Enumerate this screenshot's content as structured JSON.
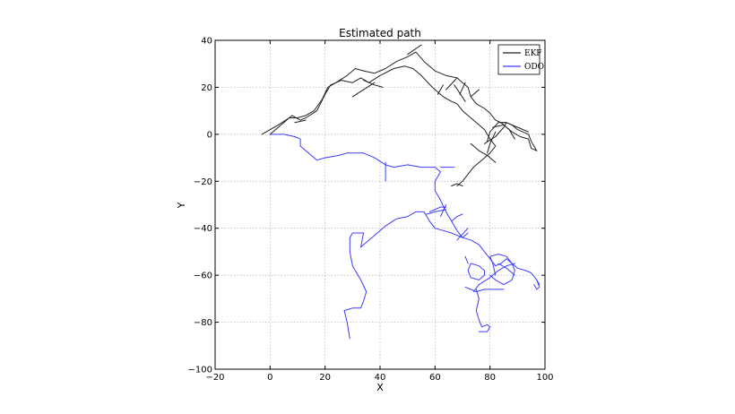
{
  "chart_data": {
    "type": "line",
    "title": "Estimated path",
    "xlabel": "X",
    "ylabel": "Y",
    "xlim": [
      -20,
      100
    ],
    "ylim": [
      -100,
      40
    ],
    "xticks": [
      -20,
      0,
      20,
      40,
      60,
      80,
      100
    ],
    "yticks": [
      -100,
      -80,
      -60,
      -40,
      -20,
      0,
      20,
      40
    ],
    "grid": true,
    "legend_position": "top-right",
    "series": [
      {
        "name": "EKF",
        "color": "#222222",
        "segments": [
          [
            [
              -3,
              0
            ],
            [
              3,
              4
            ],
            [
              7,
              7
            ],
            [
              10,
              7
            ],
            [
              13,
              8
            ],
            [
              16,
              10
            ],
            [
              19,
              15
            ],
            [
              21,
              20
            ],
            [
              24,
              22
            ],
            [
              28,
              25
            ],
            [
              31,
              28
            ],
            [
              34,
              27
            ],
            [
              38,
              26
            ],
            [
              42,
              28
            ],
            [
              46,
              31
            ],
            [
              50,
              33
            ],
            [
              53,
              35
            ],
            [
              56,
              31
            ],
            [
              60,
              27
            ],
            [
              64,
              25
            ],
            [
              68,
              24
            ],
            [
              70,
              22
            ],
            [
              72,
              20
            ],
            [
              73,
              16
            ],
            [
              75,
              13
            ],
            [
              78,
              11
            ],
            [
              80,
              9
            ],
            [
              82,
              6
            ],
            [
              84,
              5
            ],
            [
              86,
              5
            ],
            [
              88,
              4
            ],
            [
              90,
              2
            ],
            [
              92,
              1
            ],
            [
              94,
              0
            ],
            [
              95,
              -3
            ],
            [
              96,
              -5
            ],
            [
              97,
              -7
            ]
          ],
          [
            [
              0,
              0
            ],
            [
              4,
              4
            ],
            [
              8,
              8
            ],
            [
              11,
              6
            ],
            [
              13,
              7
            ],
            [
              17,
              10
            ],
            [
              20,
              17
            ],
            [
              22,
              21
            ],
            [
              26,
              23
            ],
            [
              30,
              22
            ],
            [
              33,
              24
            ],
            [
              36,
              22
            ],
            [
              40,
              25
            ],
            [
              45,
              28
            ],
            [
              49,
              29
            ],
            [
              52,
              28
            ],
            [
              55,
              25
            ],
            [
              59,
              20
            ],
            [
              63,
              16
            ],
            [
              66,
              14
            ],
            [
              68,
              13
            ],
            [
              70,
              10
            ],
            [
              72,
              8
            ],
            [
              75,
              5
            ],
            [
              78,
              2
            ],
            [
              80,
              -2
            ],
            [
              82,
              -5
            ],
            [
              80,
              -8
            ],
            [
              77,
              -11
            ],
            [
              74,
              -14
            ],
            [
              72,
              -17
            ],
            [
              70,
              -20
            ],
            [
              68,
              -22
            ]
          ],
          [
            [
              9,
              5
            ],
            [
              13,
              6
            ]
          ],
          [
            [
              30,
              16
            ],
            [
              34,
              19
            ],
            [
              38,
              22
            ]
          ],
          [
            [
              34,
              23
            ],
            [
              38,
              21
            ],
            [
              41,
              20
            ]
          ],
          [
            [
              50,
              34
            ],
            [
              55,
              38
            ]
          ],
          [
            [
              61,
              17
            ],
            [
              63,
              21
            ]
          ],
          [
            [
              64,
              19
            ],
            [
              68,
              24
            ]
          ],
          [
            [
              69,
              17
            ],
            [
              71,
              22
            ]
          ],
          [
            [
              67,
              21
            ],
            [
              71,
              14
            ]
          ],
          [
            [
              73,
              16
            ],
            [
              76,
              19
            ]
          ],
          [
            [
              81,
              3
            ],
            [
              85,
              4
            ],
            [
              88,
              1
            ],
            [
              91,
              -1
            ],
            [
              94,
              -2
            ],
            [
              95,
              -6
            ],
            [
              97,
              -7
            ]
          ],
          [
            [
              78,
              -4
            ],
            [
              82,
              -1
            ],
            [
              85,
              3
            ],
            [
              86,
              5
            ],
            [
              83,
              5
            ],
            [
              80,
              1
            ],
            [
              79,
              -3
            ]
          ],
          [
            [
              84,
              5
            ],
            [
              87,
              2
            ],
            [
              89,
              -2
            ]
          ],
          [
            [
              73,
              -4
            ],
            [
              76,
              -7
            ],
            [
              79,
              -9
            ],
            [
              82,
              -12
            ]
          ],
          [
            [
              79,
              -8
            ],
            [
              80,
              -4
            ],
            [
              82,
              1
            ]
          ],
          [
            [
              86,
              5
            ],
            [
              90,
              3
            ],
            [
              94,
              1
            ]
          ],
          [
            [
              66,
              -22
            ],
            [
              68,
              -21
            ],
            [
              70,
              -22
            ]
          ]
        ]
      },
      {
        "name": "ODO",
        "color": "#3b3bff",
        "segments": [
          [
            [
              0,
              0
            ],
            [
              5,
              0
            ],
            [
              9,
              -1
            ],
            [
              11,
              -2
            ],
            [
              11,
              -5
            ],
            [
              13,
              -7
            ],
            [
              15,
              -9
            ],
            [
              17,
              -11
            ],
            [
              20,
              -10
            ],
            [
              25,
              -9
            ],
            [
              28,
              -8
            ],
            [
              31,
              -8
            ],
            [
              34,
              -8
            ],
            [
              36,
              -9
            ],
            [
              38,
              -10
            ],
            [
              42,
              -13
            ],
            [
              45,
              -14
            ],
            [
              50,
              -13
            ],
            [
              55,
              -14
            ],
            [
              60,
              -14
            ],
            [
              62,
              -16
            ],
            [
              60,
              -20
            ],
            [
              60,
              -24
            ],
            [
              62,
              -28
            ],
            [
              64,
              -33
            ],
            [
              66,
              -37
            ],
            [
              68,
              -41
            ],
            [
              70,
              -44
            ],
            [
              73,
              -45
            ],
            [
              76,
              -47
            ],
            [
              78,
              -50
            ],
            [
              80,
              -53
            ],
            [
              82,
              -56
            ],
            [
              84,
              -55
            ],
            [
              86,
              -53
            ],
            [
              88,
              -55
            ],
            [
              90,
              -57
            ],
            [
              93,
              -58
            ],
            [
              95,
              -59
            ],
            [
              97,
              -62
            ],
            [
              98,
              -64
            ]
          ],
          [
            [
              42,
              -12
            ],
            [
              42,
              -20
            ]
          ],
          [
            [
              62,
              -14
            ],
            [
              67,
              -14
            ]
          ],
          [
            [
              57,
              -34
            ],
            [
              60,
              -33
            ],
            [
              64,
              -32
            ]
          ],
          [
            [
              58,
              -33
            ],
            [
              62,
              -31
            ],
            [
              64,
              -31
            ]
          ],
          [
            [
              62,
              -35
            ],
            [
              64,
              -30
            ]
          ],
          [
            [
              66,
              -37
            ],
            [
              68,
              -35
            ],
            [
              70,
              -34
            ]
          ],
          [
            [
              70,
              -44
            ],
            [
              72,
              -42
            ]
          ],
          [
            [
              68,
              -45
            ],
            [
              72,
              -40
            ]
          ],
          [
            [
              29,
              -87
            ],
            [
              28,
              -80
            ],
            [
              27,
              -75
            ],
            [
              30,
              -74
            ],
            [
              33,
              -74
            ],
            [
              34,
              -71
            ],
            [
              35,
              -67
            ],
            [
              33,
              -62
            ],
            [
              30,
              -56
            ],
            [
              29,
              -50
            ],
            [
              29,
              -44
            ],
            [
              30,
              -42
            ],
            [
              34,
              -42
            ],
            [
              33,
              -48
            ]
          ],
          [
            [
              33,
              -48
            ],
            [
              38,
              -43
            ],
            [
              42,
              -39
            ],
            [
              46,
              -36
            ],
            [
              50,
              -35
            ],
            [
              53,
              -33
            ],
            [
              56,
              -33
            ],
            [
              58,
              -37
            ],
            [
              60,
              -40
            ],
            [
              63,
              -41
            ],
            [
              66,
              -42
            ],
            [
              70,
              -44
            ]
          ],
          [
            [
              71,
              -65
            ],
            [
              75,
              -67
            ],
            [
              78,
              -66
            ],
            [
              82,
              -66
            ],
            [
              85,
              -66
            ]
          ],
          [
            [
              74,
              -67
            ],
            [
              76,
              -64
            ],
            [
              80,
              -61
            ],
            [
              83,
              -58
            ],
            [
              86,
              -56
            ],
            [
              89,
              -55
            ]
          ],
          [
            [
              73,
              -55
            ],
            [
              76,
              -56
            ],
            [
              78,
              -58
            ],
            [
              78,
              -60
            ],
            [
              76,
              -62
            ],
            [
              73,
              -61
            ],
            [
              72,
              -58
            ],
            [
              73,
              -55
            ]
          ],
          [
            [
              82,
              -60
            ],
            [
              81,
              -55
            ],
            [
              80,
              -52
            ],
            [
              83,
              -51
            ],
            [
              86,
              -52
            ],
            [
              88,
              -55
            ],
            [
              89,
              -58
            ],
            [
              88,
              -62
            ],
            [
              85,
              -64
            ],
            [
              82,
              -62
            ],
            [
              80,
              -60
            ]
          ],
          [
            [
              75,
              -66
            ],
            [
              76,
              -70
            ],
            [
              75,
              -75
            ],
            [
              76,
              -79
            ],
            [
              77,
              -82
            ],
            [
              79,
              -81
            ],
            [
              80,
              -82
            ],
            [
              79,
              -84
            ],
            [
              76,
              -84
            ]
          ],
          [
            [
              83,
              -55
            ],
            [
              86,
              -57
            ],
            [
              89,
              -60
            ]
          ],
          [
            [
              97,
              -62
            ],
            [
              98,
              -65
            ],
            [
              97,
              -66
            ],
            [
              96,
              -64
            ]
          ],
          [
            [
              72,
              -55
            ],
            [
              71,
              -52
            ]
          ]
        ]
      }
    ]
  }
}
